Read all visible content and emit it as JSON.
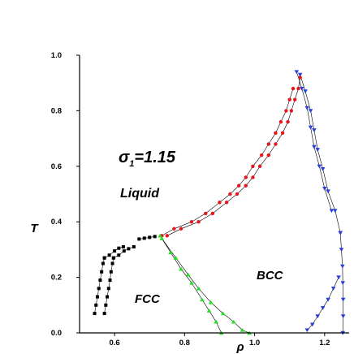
{
  "chart_data": {
    "type": "scatter",
    "title": "",
    "xlabel": "ρ",
    "ylabel": "T",
    "xlim": [
      0.5,
      1.27
    ],
    "ylim": [
      0.0,
      1.0
    ],
    "xticks": [
      0.6,
      0.8,
      1.0,
      1.2
    ],
    "xtick_labels": [
      "0.6",
      "0.8",
      "1.0",
      "1.2"
    ],
    "yticks": [
      0.0,
      0.2,
      0.4,
      0.6,
      0.8,
      1.0
    ],
    "ytick_labels": [
      "0.0",
      "0.2",
      "0.4",
      "0.6",
      "0.8",
      "1.0"
    ],
    "grid": false,
    "annotations": {
      "sigma": {
        "prefix": "σ",
        "sub": "1",
        "suffix": "=1.15"
      },
      "liquid": "Liquid",
      "fcc": "FCC",
      "bcc": "BCC"
    },
    "series": [
      {
        "marker": "square",
        "color": "#000000",
        "segments": [
          {
            "x": [
              0.543,
              0.547,
              0.551,
              0.555,
              0.559,
              0.563,
              0.567,
              0.571
            ],
            "y": [
              0.07,
              0.1,
              0.13,
              0.16,
              0.19,
              0.22,
              0.25,
              0.27
            ]
          },
          {
            "x": [
              0.571,
              0.575,
              0.579,
              0.583,
              0.587,
              0.59,
              0.594,
              0.597
            ],
            "y": [
              0.07,
              0.1,
              0.13,
              0.16,
              0.19,
              0.22,
              0.25,
              0.27
            ]
          },
          {
            "x": [
              0.571,
              0.585,
              0.6,
              0.612,
              0.625
            ],
            "y": [
              0.27,
              0.28,
              0.295,
              0.305,
              0.31
            ]
          },
          {
            "x": [
              0.597,
              0.612,
              0.627,
              0.64,
              0.655
            ],
            "y": [
              0.27,
              0.28,
              0.295,
              0.303,
              0.31
            ]
          },
          {
            "x": [
              0.67,
              0.685,
              0.7,
              0.715
            ],
            "y": [
              0.338,
              0.341,
              0.344,
              0.347
            ]
          }
        ]
      },
      {
        "marker": "circle",
        "color": "#e8141b",
        "segments": [
          {
            "x": [
              0.735,
              0.77,
              0.82,
              0.86,
              0.9,
              0.93,
              0.955,
              0.975,
              0.995,
              1.02,
              1.04,
              1.06,
              1.075,
              1.09,
              1.1,
              1.11
            ],
            "y": [
              0.35,
              0.375,
              0.4,
              0.43,
              0.47,
              0.5,
              0.53,
              0.56,
              0.6,
              0.64,
              0.68,
              0.72,
              0.76,
              0.8,
              0.84,
              0.88
            ]
          },
          {
            "x": [
              0.75,
              0.79,
              0.84,
              0.88,
              0.92,
              0.95,
              0.975,
              0.995,
              1.015,
              1.04,
              1.06,
              1.08,
              1.095,
              1.105,
              1.115,
              1.125,
              1.13
            ],
            "y": [
              0.35,
              0.375,
              0.4,
              0.43,
              0.47,
              0.5,
              0.53,
              0.56,
              0.6,
              0.64,
              0.68,
              0.72,
              0.76,
              0.8,
              0.84,
              0.88,
              0.92
            ]
          }
        ]
      },
      {
        "marker": "triangle-up",
        "color": "#22dd22",
        "segments": [
          {
            "x": [
              0.73,
              0.76,
              0.79,
              0.82,
              0.85,
              0.87,
              0.89,
              0.905
            ],
            "y": [
              0.35,
              0.29,
              0.23,
              0.18,
              0.12,
              0.08,
              0.04,
              0.0
            ]
          },
          {
            "x": [
              0.735,
              0.775,
              0.81,
              0.84,
              0.875,
              0.91,
              0.94,
              0.965,
              0.985
            ],
            "y": [
              0.34,
              0.27,
              0.21,
              0.16,
              0.11,
              0.07,
              0.04,
              0.01,
              0.0
            ]
          }
        ]
      },
      {
        "marker": "triangle-down",
        "color": "#2a3fd6",
        "segments": [
          {
            "x": [
              1.12,
              1.135,
              1.15,
              1.16,
              1.17,
              1.185,
              1.2,
              1.22
            ],
            "y": [
              0.94,
              0.88,
              0.81,
              0.74,
              0.67,
              0.6,
              0.52,
              0.44
            ]
          },
          {
            "x": [
              1.13,
              1.145,
              1.16,
              1.17,
              1.18,
              1.195,
              1.21,
              1.23,
              1.245
            ],
            "y": [
              0.93,
              0.87,
              0.8,
              0.73,
              0.66,
              0.59,
              0.51,
              0.44,
              0.36
            ]
          },
          {
            "x": [
              1.245,
              1.248,
              1.251,
              1.252,
              1.253,
              1.253,
              1.252
            ],
            "y": [
              0.36,
              0.3,
              0.24,
              0.18,
              0.12,
              0.06,
              0.0
            ]
          },
          {
            "x": [
              1.15,
              1.165,
              1.18,
              1.195,
              1.21,
              1.225,
              1.24
            ],
            "y": [
              0.01,
              0.03,
              0.06,
              0.09,
              0.12,
              0.16,
              0.2
            ]
          }
        ]
      }
    ]
  }
}
